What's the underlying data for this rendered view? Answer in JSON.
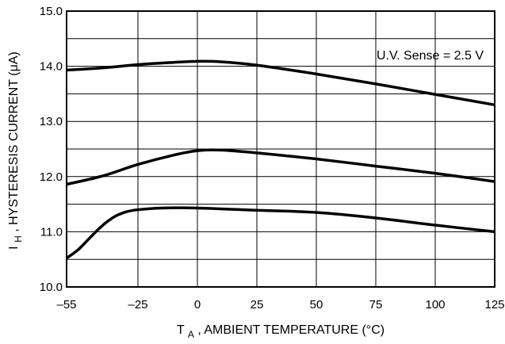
{
  "chart_data": {
    "type": "line",
    "xlabel": {
      "symbol": "T",
      "subscript": "A",
      "rest": ", AMBIENT TEMPERATURE (°C)"
    },
    "ylabel": {
      "symbol": "I",
      "subscript": "H",
      "rest": ", HYSTERESIS CURRENT (μA)"
    },
    "annotation": "U.V. Sense = 2.5 V",
    "xlim": [
      -55,
      125
    ],
    "ylim": [
      10.0,
      15.0
    ],
    "x_ticks": [
      -55,
      -25,
      0,
      25,
      50,
      75,
      100,
      125
    ],
    "x_tick_labels": [
      "–55",
      "–25",
      "0",
      "25",
      "50",
      "75",
      "100",
      "125"
    ],
    "y_ticks": [
      10.0,
      11.0,
      12.0,
      13.0,
      14.0,
      15.0
    ],
    "y_tick_labels": [
      "10.0",
      "11.0",
      "12.0",
      "13.0",
      "14.0",
      "15.0"
    ],
    "grid": true,
    "series": [
      {
        "x": [
          -55,
          -40,
          -25,
          -10,
          0,
          10,
          25,
          50,
          75,
          100,
          125
        ],
        "y": [
          13.93,
          13.97,
          14.03,
          14.07,
          14.09,
          14.08,
          14.02,
          13.86,
          13.68,
          13.49,
          13.3
        ]
      },
      {
        "x": [
          -55,
          -40,
          -25,
          -10,
          0,
          10,
          25,
          50,
          75,
          100,
          125
        ],
        "y": [
          11.86,
          12.01,
          12.22,
          12.39,
          12.47,
          12.48,
          12.43,
          12.32,
          12.19,
          12.06,
          11.91
        ]
      },
      {
        "x": [
          -55,
          -50,
          -45,
          -40,
          -35,
          -30,
          -25,
          -15,
          0,
          25,
          50,
          75,
          100,
          125
        ],
        "y": [
          10.52,
          10.68,
          10.9,
          11.11,
          11.27,
          11.36,
          11.4,
          11.43,
          11.43,
          11.39,
          11.35,
          11.25,
          11.12,
          11.0
        ]
      }
    ],
    "colors": {
      "line": "#000000",
      "grid": "#000000",
      "background": "#ffffff"
    }
  }
}
